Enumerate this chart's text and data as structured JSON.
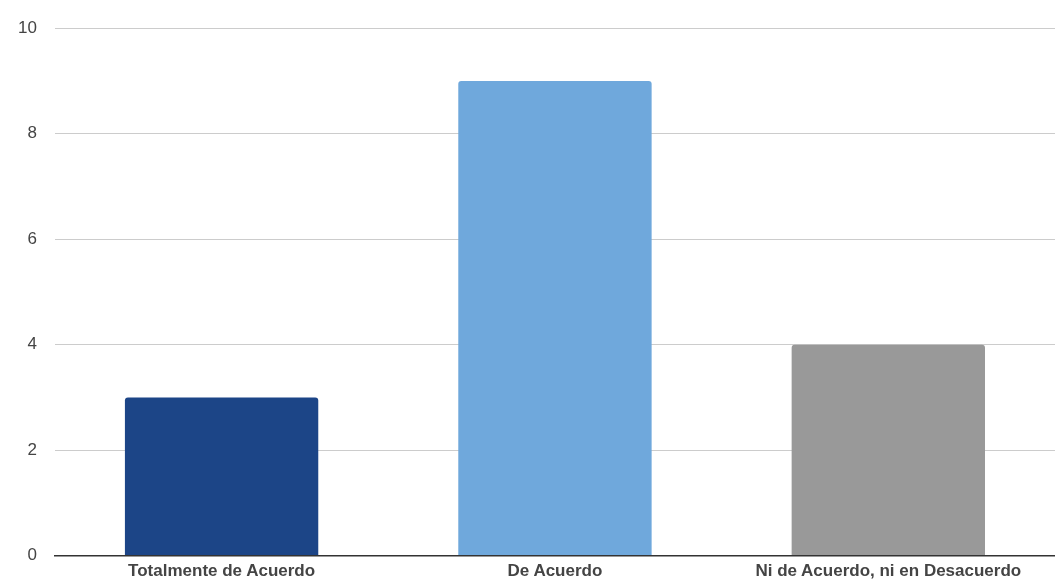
{
  "chart_data": {
    "type": "bar",
    "categories": [
      "Totalmente de Acuerdo",
      "De Acuerdo",
      "Ni de Acuerdo, ni en Desacuerdo"
    ],
    "values": [
      3,
      9,
      4
    ],
    "colors": [
      "#1c4587",
      "#6fa8dc",
      "#999999"
    ],
    "ylim": [
      0,
      10
    ],
    "yticks": [
      0,
      2,
      4,
      6,
      8,
      10
    ],
    "grid": "y",
    "legend": false
  }
}
